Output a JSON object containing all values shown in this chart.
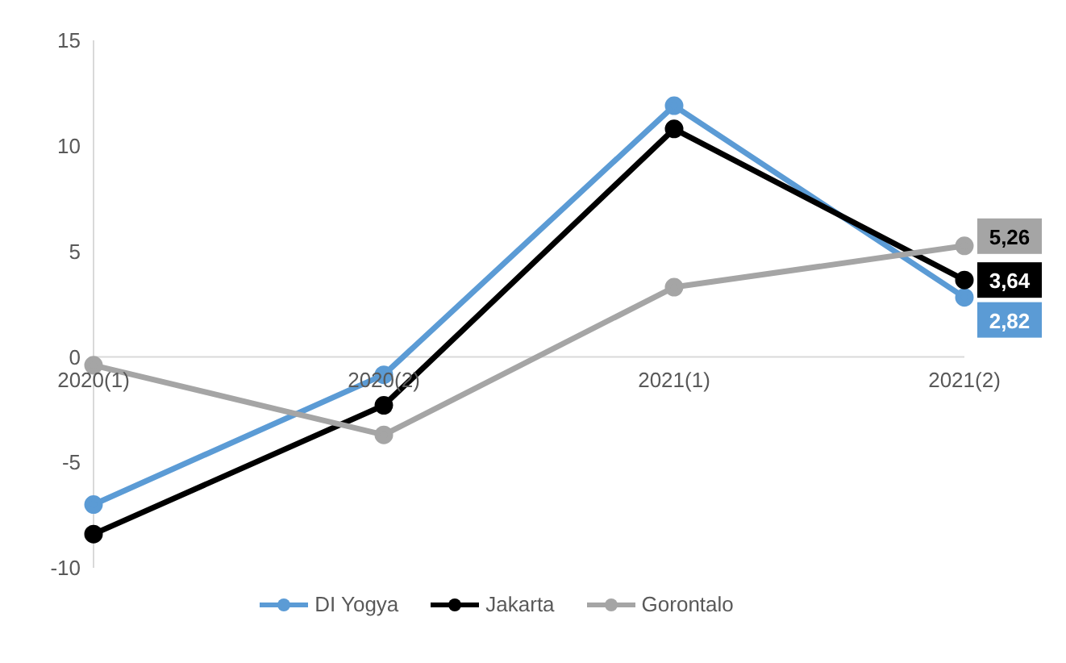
{
  "chart_data": {
    "type": "line",
    "categories": [
      "2020(1)",
      "2020(2)",
      "2021(1)",
      "2021(2)"
    ],
    "series": [
      {
        "name": "DI Yogya",
        "color": "#5b9bd5",
        "values": [
          -7.0,
          -0.85,
          11.9,
          2.82
        ],
        "value_labels": [
          null,
          null,
          null,
          "2,82"
        ]
      },
      {
        "name": "Jakarta",
        "color": "#000000",
        "values": [
          -8.4,
          -2.3,
          10.8,
          3.64
        ],
        "value_labels": [
          null,
          null,
          null,
          "3,64"
        ]
      },
      {
        "name": "Gorontalo",
        "color": "#a5a5a5",
        "values": [
          -0.4,
          -3.7,
          3.3,
          5.26
        ],
        "value_labels": [
          null,
          null,
          null,
          "5,26"
        ]
      }
    ],
    "ylim": [
      -10,
      15
    ],
    "yticks": [
      -10,
      -5,
      0,
      5,
      10,
      15
    ],
    "legend": "bottom",
    "marker": "circle",
    "line_style": "solid"
  }
}
